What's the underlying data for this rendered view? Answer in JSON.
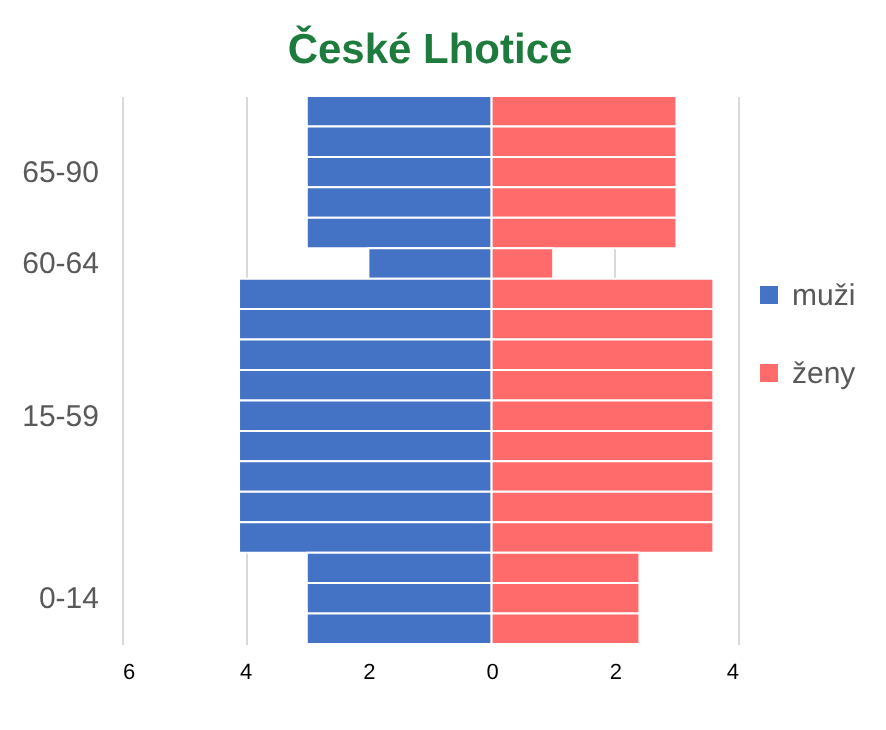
{
  "chart_data": {
    "type": "bar",
    "title": "České Lhotice",
    "orientation": "horizontal",
    "stacked": true,
    "categories": [
      null,
      null,
      "65-90",
      null,
      null,
      "60-64",
      null,
      null,
      null,
      null,
      "15-59",
      null,
      null,
      null,
      null,
      null,
      "0-14",
      null
    ],
    "series": [
      {
        "name": "muži",
        "color": "#4472c4",
        "values": [
          -3,
          -3,
          -3,
          -3,
          -3,
          -2,
          -4.1,
          -4.1,
          -4.1,
          -4.1,
          -4.1,
          -4.1,
          -4.1,
          -4.1,
          -4.1,
          -3,
          -3,
          -3
        ]
      },
      {
        "name": "ženy",
        "color": "#ff6b6b",
        "values": [
          3,
          3,
          3,
          3,
          3,
          1,
          3.6,
          3.6,
          3.6,
          3.6,
          3.6,
          3.6,
          3.6,
          3.6,
          3.6,
          2.4,
          2.4,
          2.4
        ]
      }
    ],
    "xlim": [
      -6,
      4
    ],
    "xticks": [
      {
        "value": -6,
        "label": "6"
      },
      {
        "value": -4,
        "label": "4"
      },
      {
        "value": -2,
        "label": "2"
      },
      0,
      {
        "value": 2,
        "label": "2"
      },
      4
    ],
    "grid": "x",
    "legend": "right"
  }
}
